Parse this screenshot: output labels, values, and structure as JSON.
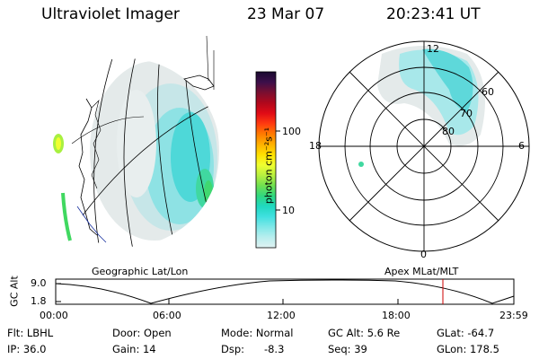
{
  "header": {
    "instrument": "Ultraviolet Imager",
    "date": "23 Mar 07",
    "time": "20:23:41  UT"
  },
  "geo_panel": {
    "label": "Geographic Lat/Lon"
  },
  "polar_panel": {
    "label": "Apex  MLat/MLT",
    "mlt_labels": {
      "top": "12",
      "left": "18",
      "right": "6",
      "bottom": "0"
    },
    "lat_labels": [
      "60",
      "70",
      "80"
    ]
  },
  "colorbar": {
    "unit_label": "photon cm⁻²s⁻¹",
    "ticks": [
      "100",
      "10"
    ],
    "colors": [
      "#1a0a30",
      "#3c0f4a",
      "#7a0f30",
      "#b0081c",
      "#e00b16",
      "#ff3a10",
      "#ff7a00",
      "#ffb000",
      "#ffe000",
      "#f0ff30",
      "#b8f040",
      "#70e050",
      "#30d880",
      "#20d8c0",
      "#40e0e0",
      "#80e8e8",
      "#b8eeee",
      "#e0f2f2"
    ]
  },
  "orbit_plot": {
    "ylabel": "GC Alt",
    "y_ticks": [
      "9.0",
      "1.8"
    ],
    "x_ticks": [
      "00:00",
      "06:00",
      "12:00",
      "18:00",
      "23:59"
    ],
    "marker_color": "#cc0000"
  },
  "info": {
    "row1": [
      "Flt: LBHL",
      "Door: Open",
      "Mode: Normal",
      "GC Alt: 5.6 Re",
      "GLat: -64.7"
    ],
    "row2": [
      "IP: 36.0",
      "Gain: 14",
      "Dsp:      -8.3",
      "Seq: 39",
      "GLon: 178.5"
    ]
  }
}
